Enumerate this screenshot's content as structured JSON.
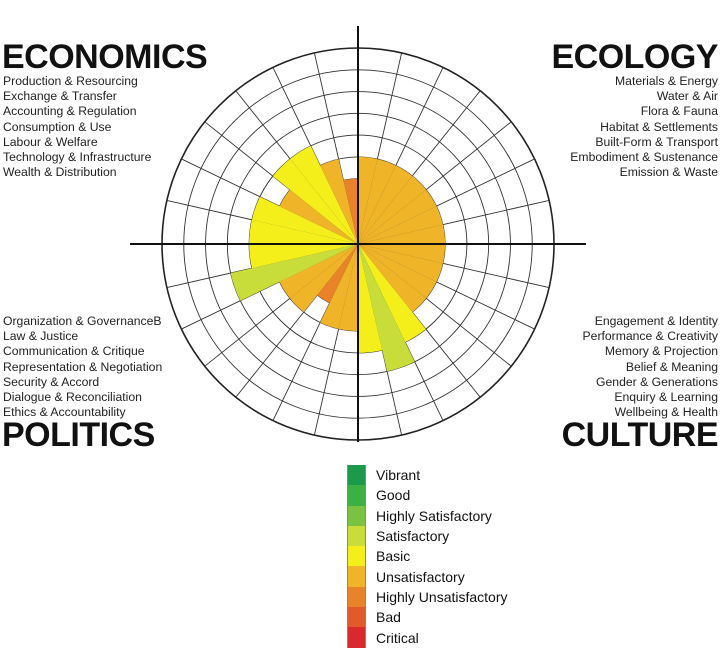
{
  "chart_data": {
    "type": "radial-bar",
    "scale_levels": 9,
    "levels": [
      {
        "name": "Vibrant",
        "level": 9,
        "color": "#1a9a4a"
      },
      {
        "name": "Good",
        "level": 8,
        "color": "#3cb043"
      },
      {
        "name": "Highly Satisfactory",
        "level": 7,
        "color": "#7cc242"
      },
      {
        "name": "Satisfactory",
        "level": 6,
        "color": "#c9dd3a"
      },
      {
        "name": "Basic",
        "level": 5,
        "color": "#f4ee1a"
      },
      {
        "name": "Unsatisfactory",
        "level": 4,
        "color": "#f0b428"
      },
      {
        "name": "Highly Unsatisfactory",
        "level": 3,
        "color": "#e8832a"
      },
      {
        "name": "Bad",
        "level": 2,
        "color": "#e35a2a"
      },
      {
        "name": "Critical",
        "level": 1,
        "color": "#d9282e"
      }
    ],
    "domains": [
      {
        "name": "ECONOMICS",
        "subdomains": [
          {
            "label": "Production & Resourcing",
            "value": 3
          },
          {
            "label": "Exchange & Transfer",
            "value": 4
          },
          {
            "label": "Accounting & Regulation",
            "value": 5
          },
          {
            "label": "Consumption & Use",
            "value": 5
          },
          {
            "label": "Labour & Welfare",
            "value": 4
          },
          {
            "label": "Technology & Infrastructure",
            "value": 5
          },
          {
            "label": "Wealth & Distribution",
            "value": 5
          }
        ]
      },
      {
        "name": "ECOLOGY",
        "subdomains": [
          {
            "label": "Materials & Energy",
            "value": 4
          },
          {
            "label": "Water & Air",
            "value": 4
          },
          {
            "label": "Flora & Fauna",
            "value": 4
          },
          {
            "label": "Habitat & Settlements",
            "value": 4
          },
          {
            "label": "Built-Form & Transport",
            "value": 4
          },
          {
            "label": "Embodiment & Sustenance",
            "value": 4
          },
          {
            "label": "Emission & Waste",
            "value": 4
          }
        ]
      },
      {
        "name": "CULTURE",
        "subdomains": [
          {
            "label": "Engagement & Identity",
            "value": 5
          },
          {
            "label": "Performance & Creativity",
            "value": 6
          },
          {
            "label": "Memory & Projection",
            "value": 5
          },
          {
            "label": "Belief & Meaning",
            "value": 4
          },
          {
            "label": "Gender & Generations",
            "value": 4
          },
          {
            "label": "Enquiry & Learning",
            "value": 4
          },
          {
            "label": "Wellbeing & Health",
            "value": 4
          }
        ]
      },
      {
        "name": "POLITICS",
        "subdomains": [
          {
            "label": "Organization & GovernanceB",
            "value": 4
          },
          {
            "label": "Law & Justice",
            "value": 4
          },
          {
            "label": "Communication & Critique",
            "value": 3
          },
          {
            "label": "Representation & Negotiation",
            "value": 4
          },
          {
            "label": "Security & Accord",
            "value": 4
          },
          {
            "label": "Dialogue & Reconciliation",
            "value": 6
          },
          {
            "label": "Ethics & Accountability",
            "value": 5
          }
        ]
      }
    ]
  },
  "quadrants": {
    "economics": {
      "title": "ECONOMICS",
      "items": [
        "Production & Resourcing",
        "Exchange & Transfer",
        "Accounting & Regulation",
        "Consumption & Use",
        "Labour & Welfare",
        "Technology & Infrastructure",
        "Wealth & Distribution"
      ]
    },
    "ecology": {
      "title": "ECOLOGY",
      "items": [
        "Materials & Energy",
        "Water & Air",
        "Flora & Fauna",
        "Habitat & Settlements",
        "Built-Form & Transport",
        "Embodiment & Sustenance",
        "Emission & Waste"
      ]
    },
    "politics": {
      "title": "POLITICS",
      "items": [
        "Organization & GovernanceB",
        "Law & Justice",
        "Communication & Critique",
        "Representation & Negotiation",
        "Security & Accord",
        "Dialogue & Reconciliation",
        "Ethics & Accountability"
      ]
    },
    "culture": {
      "title": "CULTURE",
      "items": [
        "Engagement & Identity",
        "Performance & Creativity",
        "Memory & Projection",
        "Belief & Meaning",
        "Gender & Generations",
        "Enquiry & Learning",
        "Wellbeing & Health"
      ]
    }
  },
  "legend": [
    {
      "label": "Vibrant",
      "color": "#1a9a4a"
    },
    {
      "label": "Good",
      "color": "#3cb043"
    },
    {
      "label": "Highly Satisfactory",
      "color": "#7cc242"
    },
    {
      "label": "Satisfactory",
      "color": "#c9dd3a"
    },
    {
      "label": "Basic",
      "color": "#f4ee1a"
    },
    {
      "label": "Unsatisfactory",
      "color": "#f0b428"
    },
    {
      "label": "Highly Unsatisfactory",
      "color": "#e8832a"
    },
    {
      "label": "Bad",
      "color": "#e35a2a"
    },
    {
      "label": "Critical",
      "color": "#d9282e"
    }
  ]
}
